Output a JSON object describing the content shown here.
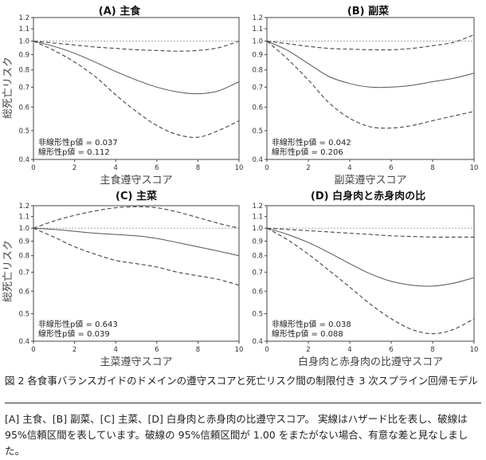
{
  "figure": {
    "ylabel": "総死亡リスク",
    "caption_title": "図 2 各食事バランスガイドのドメインの遵守スコアと死亡リスク間の制限付き 3 次スプライン回帰モデル",
    "caption_body": "[A] 主食、[B] 副菜、[C] 主菜、[D] 白身肉と赤身肉の比遵守スコア。 実線はハザード比を表し、破線は 95%信頼区間を表しています。破線の 95%信頼区間が 1.00 をまたがない場合、有意な差と見なしました。"
  },
  "chart_data": [
    {
      "type": "line",
      "title": "(A) 主食",
      "xlabel": "主食遵守スコア",
      "ylabel": "総死亡リスク",
      "x_ticks": [
        0,
        2,
        4,
        6,
        8,
        10
      ],
      "y_ticks": [
        0.4,
        0.5,
        0.6,
        0.7,
        0.8,
        0.9,
        1.0,
        1.1,
        1.2
      ],
      "xlim": [
        0,
        10
      ],
      "ylim": [
        0.4,
        1.2
      ],
      "scale": "log",
      "reference_line": 1.0,
      "annotations": [
        "非線形性p値 = 0.037",
        "線形性p値 = 0.112"
      ],
      "series": [
        {
          "style": "solid",
          "x": [
            0,
            1,
            2,
            3,
            4,
            5,
            6,
            7,
            8,
            9,
            10
          ],
          "y": [
            1.0,
            0.96,
            0.91,
            0.85,
            0.79,
            0.74,
            0.7,
            0.675,
            0.665,
            0.68,
            0.73
          ]
        },
        {
          "style": "dashed",
          "x": [
            0,
            1,
            2,
            3,
            4,
            5,
            6,
            7,
            8,
            9,
            10
          ],
          "y": [
            1.0,
            0.985,
            0.97,
            0.955,
            0.945,
            0.935,
            0.93,
            0.925,
            0.93,
            0.95,
            1.0
          ]
        },
        {
          "style": "dashed",
          "x": [
            0,
            1,
            2,
            3,
            4,
            5,
            6,
            7,
            8,
            9,
            10
          ],
          "y": [
            1.0,
            0.93,
            0.85,
            0.76,
            0.66,
            0.58,
            0.52,
            0.485,
            0.475,
            0.5,
            0.54
          ]
        }
      ]
    },
    {
      "type": "line",
      "title": "(B) 副菜",
      "xlabel": "副菜遵守スコア",
      "ylabel": "",
      "x_ticks": [
        0,
        2,
        4,
        6,
        8,
        10
      ],
      "y_ticks": [
        0.4,
        0.5,
        0.6,
        0.7,
        0.8,
        0.9,
        1.0,
        1.1,
        1.2
      ],
      "xlim": [
        0,
        10
      ],
      "ylim": [
        0.4,
        1.2
      ],
      "scale": "log",
      "reference_line": 1.0,
      "annotations": [
        "非線形性p値 = 0.042",
        "線形性p値 = 0.206"
      ],
      "series": [
        {
          "style": "solid",
          "x": [
            0,
            1,
            2,
            3,
            4,
            5,
            6,
            7,
            8,
            9,
            10
          ],
          "y": [
            1.0,
            0.93,
            0.84,
            0.76,
            0.72,
            0.7,
            0.7,
            0.71,
            0.73,
            0.75,
            0.78
          ]
        },
        {
          "style": "dashed",
          "x": [
            0,
            1,
            2,
            3,
            4,
            5,
            6,
            7,
            8,
            9,
            10
          ],
          "y": [
            1.0,
            0.98,
            0.96,
            0.945,
            0.94,
            0.935,
            0.935,
            0.945,
            0.965,
            0.99,
            1.05
          ]
        },
        {
          "style": "dashed",
          "x": [
            0,
            1,
            2,
            3,
            4,
            5,
            6,
            7,
            8,
            9,
            10
          ],
          "y": [
            1.0,
            0.87,
            0.74,
            0.62,
            0.55,
            0.515,
            0.51,
            0.52,
            0.54,
            0.56,
            0.58
          ]
        }
      ]
    },
    {
      "type": "line",
      "title": "(C) 主菜",
      "xlabel": "主菜遵守スコア",
      "ylabel": "総死亡リスク",
      "x_ticks": [
        0,
        2,
        4,
        6,
        8,
        10
      ],
      "y_ticks": [
        0.4,
        0.5,
        0.6,
        0.7,
        0.8,
        0.9,
        1.0,
        1.1,
        1.2
      ],
      "xlim": [
        0,
        10
      ],
      "ylim": [
        0.4,
        1.2
      ],
      "scale": "log",
      "reference_line": 1.0,
      "annotations": [
        "非線形性p値 = 0.643",
        "線形性p値 = 0.039"
      ],
      "series": [
        {
          "style": "solid",
          "x": [
            0,
            1,
            2,
            3,
            4,
            5,
            6,
            7,
            8,
            9,
            10
          ],
          "y": [
            1.0,
            0.99,
            0.975,
            0.96,
            0.95,
            0.94,
            0.92,
            0.89,
            0.86,
            0.83,
            0.8
          ]
        },
        {
          "style": "dashed",
          "x": [
            0,
            1,
            2,
            3,
            4,
            5,
            6,
            7,
            8,
            9,
            10
          ],
          "y": [
            1.0,
            1.06,
            1.11,
            1.15,
            1.18,
            1.19,
            1.18,
            1.14,
            1.09,
            1.04,
            1.0
          ]
        },
        {
          "style": "dashed",
          "x": [
            0,
            1,
            2,
            3,
            4,
            5,
            6,
            7,
            8,
            9,
            10
          ],
          "y": [
            1.0,
            0.93,
            0.86,
            0.81,
            0.77,
            0.75,
            0.73,
            0.7,
            0.68,
            0.66,
            0.63
          ]
        }
      ]
    },
    {
      "type": "line",
      "title": "(D) 白身肉と赤身肉の比",
      "xlabel": "白身肉と赤身肉の比遵守スコア",
      "ylabel": "",
      "x_ticks": [
        0,
        2,
        4,
        6,
        8,
        10
      ],
      "y_ticks": [
        0.4,
        0.5,
        0.6,
        0.7,
        0.8,
        0.9,
        1.0,
        1.1,
        1.2
      ],
      "xlim": [
        0,
        10
      ],
      "ylim": [
        0.4,
        1.2
      ],
      "scale": "log",
      "reference_line": 1.0,
      "annotations": [
        "非線形性p値 = 0.038",
        "線形性p値 = 0.088"
      ],
      "series": [
        {
          "style": "solid",
          "x": [
            0,
            1,
            2,
            3,
            4,
            5,
            6,
            7,
            8,
            9,
            10
          ],
          "y": [
            1.0,
            0.95,
            0.89,
            0.82,
            0.75,
            0.69,
            0.65,
            0.63,
            0.625,
            0.64,
            0.67
          ]
        },
        {
          "style": "dashed",
          "x": [
            0,
            1,
            2,
            3,
            4,
            5,
            6,
            7,
            8,
            9,
            10
          ],
          "y": [
            1.0,
            0.99,
            0.98,
            0.97,
            0.96,
            0.95,
            0.94,
            0.935,
            0.93,
            0.93,
            0.93
          ]
        },
        {
          "style": "dashed",
          "x": [
            0,
            1,
            2,
            3,
            4,
            5,
            6,
            7,
            8,
            9,
            10
          ],
          "y": [
            1.0,
            0.91,
            0.81,
            0.71,
            0.62,
            0.54,
            0.48,
            0.44,
            0.425,
            0.44,
            0.48
          ]
        }
      ]
    }
  ]
}
